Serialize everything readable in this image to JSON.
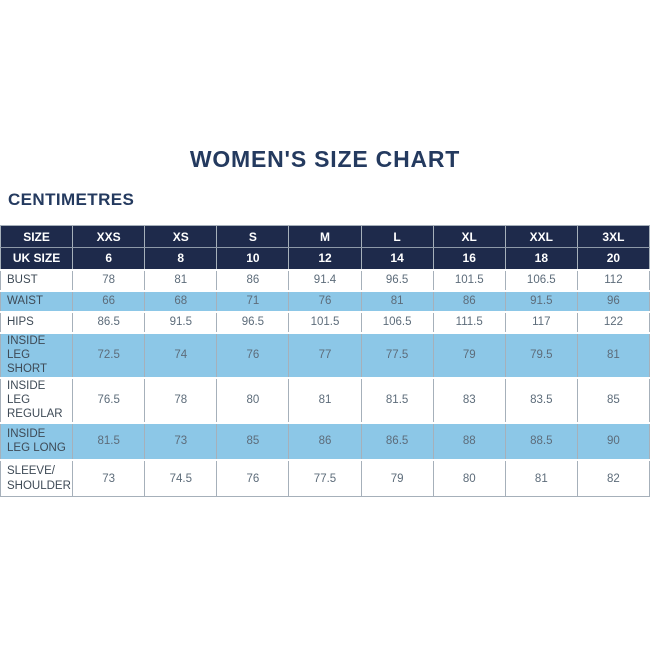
{
  "title": "WOMEN'S SIZE CHART",
  "unit_label": "CENTIMETRES",
  "colors": {
    "header_navy": "#1e2a4b",
    "title_navy": "#243a5f",
    "shaded_row_blue": "#8cc7e7",
    "border_gray": "#a6b0ba",
    "label_text": "#3e4a56",
    "value_text": "#5d6c7a"
  },
  "chart_data": {
    "type": "table",
    "title": "WOMEN'S SIZE CHART",
    "unit": "CENTIMETRES",
    "columns": [
      "SIZE",
      "XXS",
      "XS",
      "S",
      "M",
      "L",
      "XL",
      "XXL",
      "3XL"
    ],
    "uk_size_row": {
      "label": "UK SIZE",
      "values": [
        "6",
        "8",
        "10",
        "12",
        "14",
        "16",
        "18",
        "20"
      ]
    },
    "rows": [
      {
        "label": "BUST",
        "values": [
          "78",
          "81",
          "86",
          "91.4",
          "96.5",
          "101.5",
          "106.5",
          "112"
        ],
        "shaded": false
      },
      {
        "label": "WAIST",
        "values": [
          "66",
          "68",
          "71",
          "76",
          "81",
          "86",
          "91.5",
          "96"
        ],
        "shaded": true
      },
      {
        "label": "HIPS",
        "values": [
          "86.5",
          "91.5",
          "96.5",
          "101.5",
          "106.5",
          "111.5",
          "117",
          "122"
        ],
        "shaded": false
      },
      {
        "label": "INSIDE LEG SHORT",
        "values": [
          "72.5",
          "74",
          "76",
          "77",
          "77.5",
          "79",
          "79.5",
          "81"
        ],
        "shaded": true
      },
      {
        "label": "INSIDE LEG REGULAR",
        "values": [
          "76.5",
          "78",
          "80",
          "81",
          "81.5",
          "83",
          "83.5",
          "85"
        ],
        "shaded": false
      },
      {
        "label": "INSIDE LEG LONG",
        "values": [
          "81.5",
          "73",
          "85",
          "86",
          "86.5",
          "88",
          "88.5",
          "90"
        ],
        "shaded": true
      },
      {
        "label": "SLEEVE/SHOULDER",
        "values": [
          "73",
          "74.5",
          "76",
          "77.5",
          "79",
          "80",
          "81",
          "82"
        ],
        "shaded": false
      }
    ]
  }
}
